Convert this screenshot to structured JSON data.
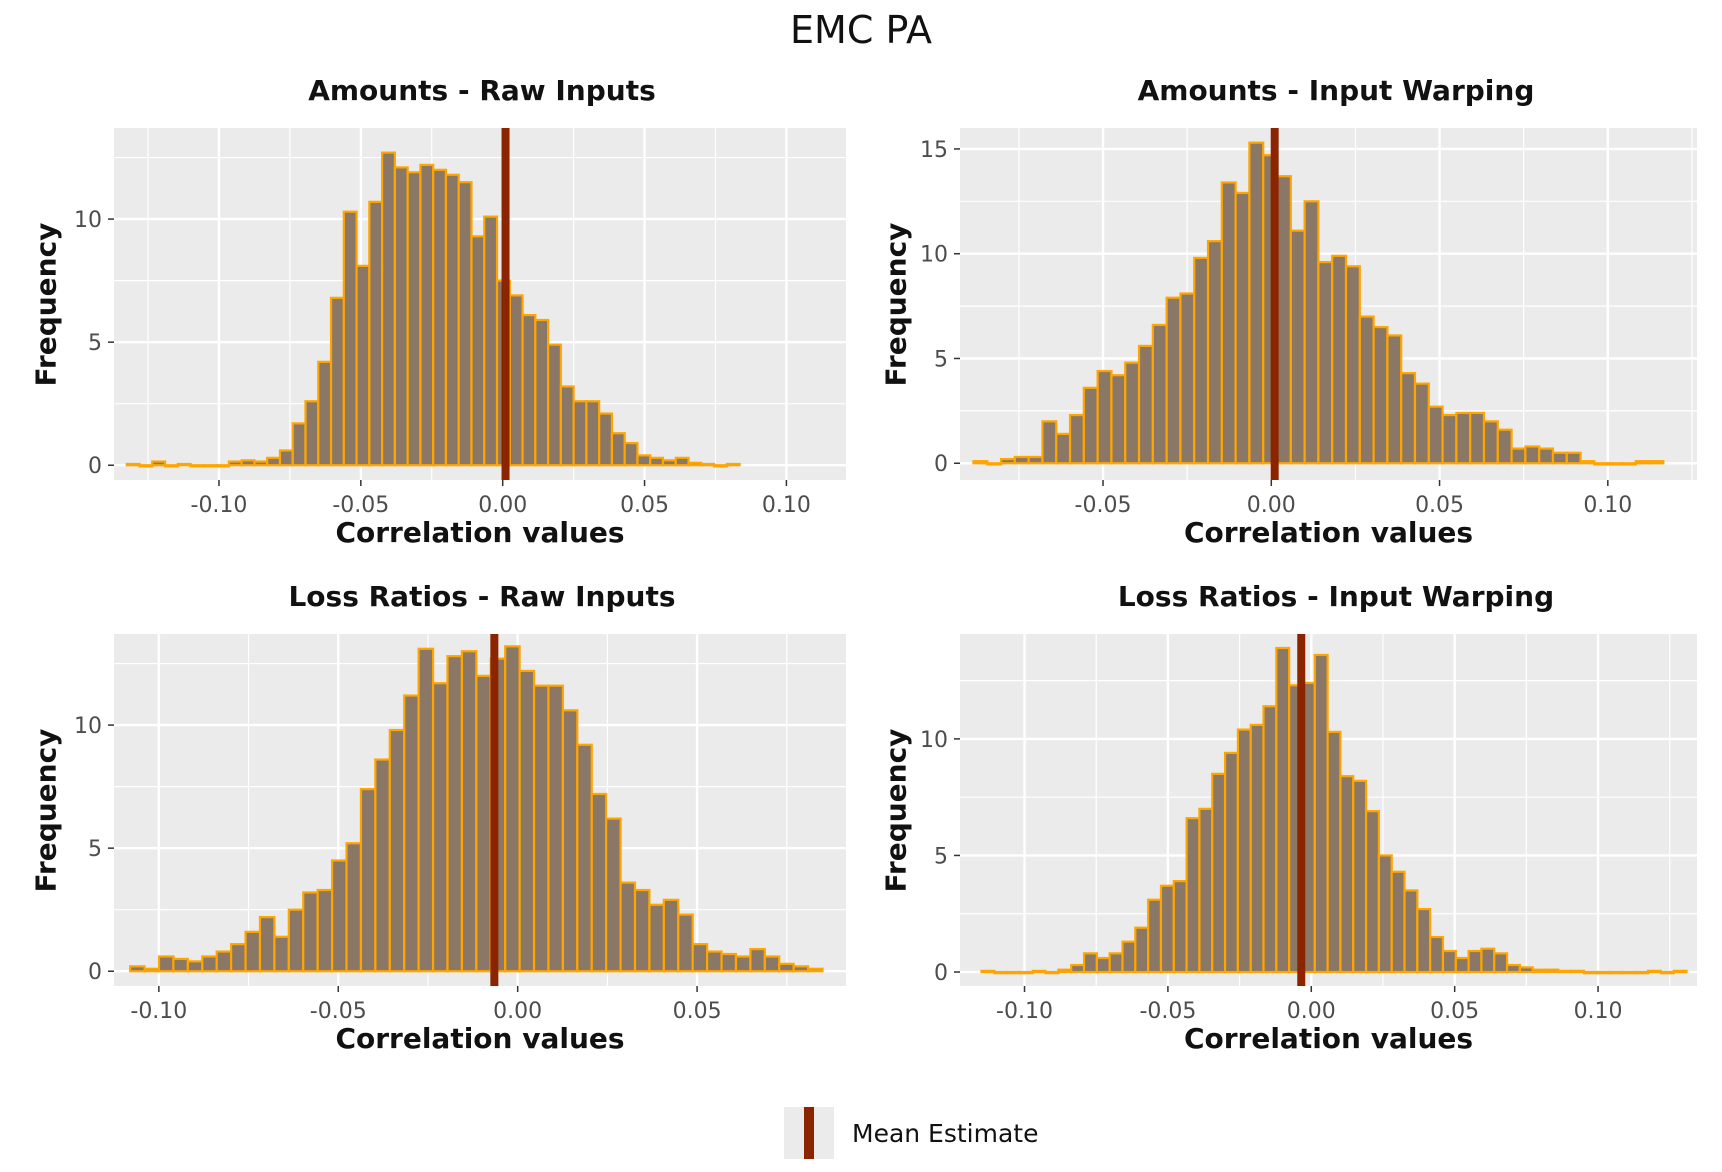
{
  "title": "EMC PA",
  "colors": {
    "fill": "#8b7765",
    "outline": "#ffa500",
    "mean_line": "#8b2500",
    "panel_bg": "#ebebeb",
    "grid": "#ffffff"
  },
  "legend": {
    "label": "Mean Estimate"
  },
  "chart_data": [
    {
      "type": "bar",
      "title": "Amounts - Raw Inputs",
      "xlabel": "Correlation values",
      "ylabel": "Frequency",
      "xlim": [
        -0.137,
        0.121
      ],
      "ylim": [
        -0.6,
        13.7
      ],
      "x_ticks": [
        -0.1,
        -0.05,
        0.0,
        0.05,
        0.1
      ],
      "x_tick_labels": [
        "-0.10",
        "-0.05",
        "0.00",
        "0.05",
        "0.10"
      ],
      "y_ticks": [
        0,
        5,
        10
      ],
      "y_tick_labels": [
        "0",
        "5",
        "10"
      ],
      "bin_start": -0.1325,
      "bin_width": 0.0045,
      "values": [
        0.05,
        0.0,
        0.15,
        0.0,
        0.05,
        0.0,
        0.0,
        0.0,
        0.15,
        0.2,
        0.15,
        0.3,
        0.6,
        1.7,
        2.6,
        4.2,
        6.8,
        10.3,
        8.1,
        10.7,
        12.7,
        12.1,
        11.9,
        12.2,
        12.0,
        11.8,
        11.5,
        9.3,
        10.1,
        7.5,
        6.9,
        6.1,
        5.9,
        4.9,
        3.2,
        2.6,
        2.6,
        2.1,
        1.3,
        0.9,
        0.4,
        0.3,
        0.2,
        0.3,
        0.1,
        0.05,
        0.0,
        0.05
      ],
      "mean": 0.001
    },
    {
      "type": "bar",
      "title": "Amounts - Input Warping",
      "xlabel": "Correlation values",
      "ylabel": "Frequency",
      "xlim": [
        -0.0925,
        0.1265
      ],
      "ylim": [
        -0.8,
        16.0
      ],
      "x_ticks": [
        -0.05,
        0.0,
        0.05,
        0.1
      ],
      "x_tick_labels": [
        "-0.05",
        "0.00",
        "0.05",
        "0.10"
      ],
      "y_ticks": [
        0,
        5,
        10,
        15
      ],
      "y_tick_labels": [
        "0",
        "5",
        "10",
        "15"
      ],
      "bin_start": -0.0885,
      "bin_width": 0.0041,
      "values": [
        0.1,
        0.0,
        0.2,
        0.3,
        0.3,
        2.0,
        1.4,
        2.3,
        3.6,
        4.4,
        4.2,
        4.8,
        5.6,
        6.6,
        7.9,
        8.1,
        9.8,
        10.6,
        13.4,
        12.9,
        15.3,
        14.7,
        13.7,
        11.1,
        12.5,
        9.6,
        9.9,
        9.4,
        7.0,
        6.5,
        6.1,
        4.3,
        3.8,
        2.7,
        2.3,
        2.4,
        2.4,
        2.0,
        1.6,
        0.7,
        0.8,
        0.7,
        0.5,
        0.5,
        0.1,
        0.0,
        0.0,
        0.0,
        0.1,
        0.1
      ],
      "mean": 0.001
    },
    {
      "type": "bar",
      "title": "Loss Ratios - Raw Inputs",
      "xlabel": "Correlation values",
      "ylabel": "Frequency",
      "xlim": [
        -0.1125,
        0.0915
      ],
      "ylim": [
        -0.6,
        13.7
      ],
      "x_ticks": [
        -0.1,
        -0.05,
        0.0,
        0.05
      ],
      "x_tick_labels": [
        "-0.10",
        "-0.05",
        "0.00",
        "0.05"
      ],
      "y_ticks": [
        0,
        5,
        10
      ],
      "y_tick_labels": [
        "0",
        "5",
        "10"
      ],
      "bin_start": -0.108,
      "bin_width": 0.00402,
      "values": [
        0.2,
        0.1,
        0.6,
        0.5,
        0.4,
        0.6,
        0.8,
        1.1,
        1.6,
        2.2,
        1.4,
        2.5,
        3.2,
        3.3,
        4.5,
        5.2,
        7.4,
        8.6,
        9.8,
        11.2,
        13.1,
        11.7,
        12.8,
        13.0,
        12.0,
        12.7,
        13.2,
        12.2,
        11.6,
        11.6,
        10.6,
        9.2,
        7.2,
        6.2,
        3.6,
        3.3,
        2.7,
        2.9,
        2.3,
        1.1,
        0.8,
        0.7,
        0.6,
        0.9,
        0.6,
        0.3,
        0.2,
        0.1
      ],
      "mean": -0.0065
    },
    {
      "type": "bar",
      "title": "Loss Ratios - Input Warping",
      "xlabel": "Correlation values",
      "ylabel": "Frequency",
      "xlim": [
        -0.1225,
        0.1345
      ],
      "ylim": [
        -0.6,
        14.5
      ],
      "x_ticks": [
        -0.1,
        -0.05,
        0.0,
        0.05,
        0.1
      ],
      "x_tick_labels": [
        "-0.10",
        "-0.05",
        "0.00",
        "0.05",
        "0.10"
      ],
      "y_ticks": [
        0,
        5,
        10
      ],
      "y_tick_labels": [
        "0",
        "5",
        "10"
      ],
      "bin_start": -0.115,
      "bin_width": 0.00447,
      "values": [
        0.05,
        0.0,
        0.0,
        0.0,
        0.05,
        0.0,
        0.1,
        0.3,
        0.8,
        0.6,
        0.8,
        1.3,
        1.9,
        3.1,
        3.7,
        3.9,
        6.6,
        7.0,
        8.5,
        9.4,
        10.4,
        10.6,
        11.4,
        13.9,
        12.3,
        12.4,
        13.6,
        10.3,
        8.4,
        8.2,
        6.9,
        5.0,
        4.3,
        3.5,
        2.7,
        1.5,
        0.9,
        0.6,
        0.9,
        1.0,
        0.8,
        0.3,
        0.2,
        0.1,
        0.1,
        0.05,
        0.05,
        0.0,
        0.0,
        0.0,
        0.0,
        0.0,
        0.05,
        0.0,
        0.05
      ],
      "mean": -0.0035
    }
  ]
}
